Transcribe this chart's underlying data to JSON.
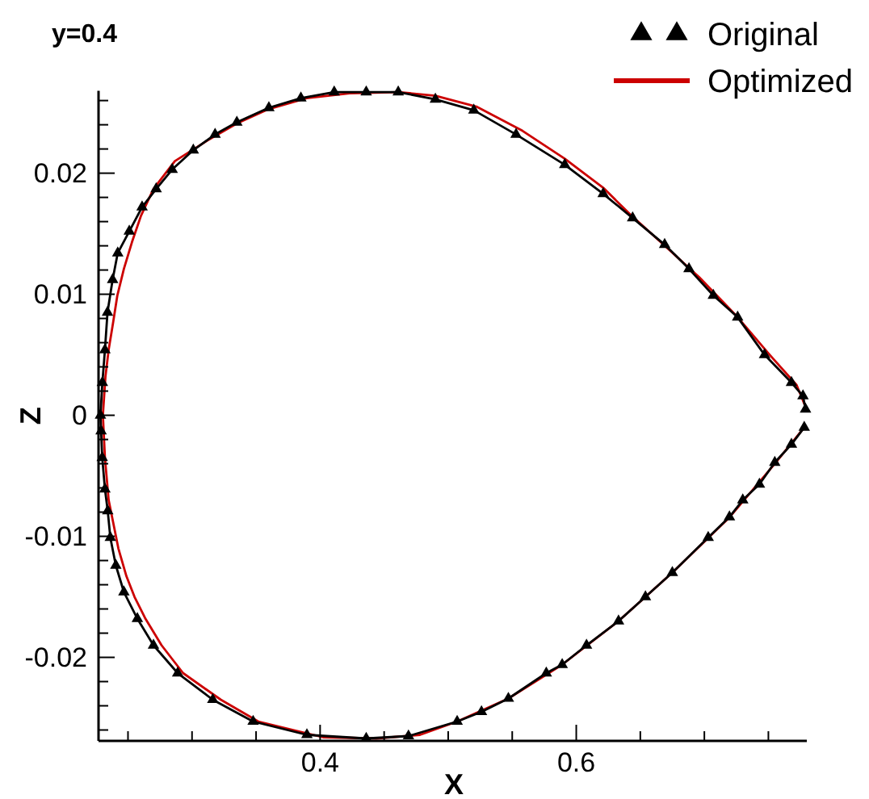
{
  "chart_data": {
    "type": "line",
    "title": "y=0.4",
    "xlabel": "X",
    "ylabel": "Z",
    "legend": "top right",
    "xlim": [
      0.227,
      0.78
    ],
    "ylim": [
      -0.0269,
      0.0268
    ],
    "xticks": [
      {
        "value": 0.25,
        "label": null
      },
      {
        "value": 0.3,
        "label": null
      },
      {
        "value": 0.35,
        "label": null
      },
      0.4,
      {
        "value": 0.45,
        "label": null
      },
      {
        "value": 0.5,
        "label": null
      },
      {
        "value": 0.55,
        "label": null
      },
      0.6,
      {
        "value": 0.65,
        "label": null
      },
      {
        "value": 0.7,
        "label": null
      },
      {
        "value": 0.75,
        "label": null
      }
    ],
    "yticks": [
      {
        "value": -0.026,
        "label": null
      },
      {
        "value": -0.024,
        "label": null
      },
      {
        "value": -0.022,
        "label": null
      },
      -0.02,
      {
        "value": -0.018,
        "label": null
      },
      {
        "value": -0.016,
        "label": null
      },
      {
        "value": -0.014,
        "label": null
      },
      {
        "value": -0.012,
        "label": null
      },
      -0.01,
      {
        "value": -0.008,
        "label": null
      },
      {
        "value": -0.006,
        "label": null
      },
      {
        "value": -0.004,
        "label": null
      },
      {
        "value": -0.002,
        "label": null
      },
      0,
      {
        "value": 0.002,
        "label": null
      },
      {
        "value": 0.004,
        "label": null
      },
      {
        "value": 0.006,
        "label": null
      },
      {
        "value": 0.008,
        "label": null
      },
      0.01,
      {
        "value": 0.012,
        "label": null
      },
      {
        "value": 0.014,
        "label": null
      },
      {
        "value": 0.016,
        "label": null
      },
      {
        "value": 0.018,
        "label": null
      },
      0.02,
      {
        "value": 0.022,
        "label": null
      },
      {
        "value": 0.024,
        "label": null
      },
      {
        "value": 0.026,
        "label": null
      }
    ],
    "series": [
      {
        "name": "Optimized",
        "color": "#cc0000",
        "marker": "none",
        "x": [
          0.779,
          0.772,
          0.751,
          0.726,
          0.696,
          0.667,
          0.642,
          0.621,
          0.591,
          0.558,
          0.522,
          0.49,
          0.461,
          0.423,
          0.3895,
          0.36,
          0.335,
          0.312,
          0.2866,
          0.2699,
          0.2602,
          0.2531,
          0.2468,
          0.2417,
          0.2383,
          0.2349,
          0.2324,
          0.2304,
          0.232,
          0.2349,
          0.2425,
          0.2488,
          0.2551,
          0.2636,
          0.2762,
          0.293,
          0.3225,
          0.3518,
          0.4023,
          0.444,
          0.478,
          0.507,
          0.547,
          0.589,
          0.633,
          0.675,
          0.719,
          0.755,
          0.778
        ],
        "values": [
          0.0007,
          0.0025,
          0.005,
          0.0081,
          0.0114,
          0.0142,
          0.0166,
          0.0188,
          0.0212,
          0.0235,
          0.0255,
          0.0264,
          0.0267,
          0.0266,
          0.0262,
          0.0253,
          0.0241,
          0.0227,
          0.021,
          0.0187,
          0.0165,
          0.0143,
          0.0121,
          0.0099,
          0.0076,
          0.0054,
          0.0032,
          0,
          -0.0035,
          -0.007,
          -0.011,
          -0.0133,
          -0.015,
          -0.0168,
          -0.019,
          -0.0213,
          -0.0235,
          -0.0253,
          -0.0266,
          -0.0267,
          -0.0264,
          -0.0253,
          -0.0234,
          -0.0206,
          -0.017,
          -0.013,
          -0.0085,
          -0.004,
          -0.001
        ]
      },
      {
        "name": "Original",
        "color": "#000000",
        "marker": "triangle",
        "x": [
          0.779,
          0.777,
          0.768,
          0.747,
          0.726,
          0.707,
          0.688,
          0.669,
          0.644,
          0.621,
          0.591,
          0.553,
          0.52,
          0.49,
          0.461,
          0.436,
          0.411,
          0.385,
          0.36,
          0.335,
          0.318,
          0.301,
          0.2845,
          0.272,
          0.261,
          0.251,
          0.242,
          0.238,
          0.234,
          0.232,
          0.23,
          0.2285,
          0.229,
          0.2299,
          0.232,
          0.2342,
          0.2362,
          0.2405,
          0.2468,
          0.2573,
          0.2699,
          0.2888,
          0.3162,
          0.3477,
          0.3897,
          0.436,
          0.469,
          0.507,
          0.526,
          0.547,
          0.5766,
          0.589,
          0.608,
          0.633,
          0.654,
          0.675,
          0.703,
          0.7196,
          0.73,
          0.743,
          0.755,
          0.768,
          0.778
        ],
        "values": [
          0.0005,
          0.0016,
          0.0027,
          0.005,
          0.0081,
          0.0099,
          0.0121,
          0.0141,
          0.0163,
          0.0183,
          0.0207,
          0.0232,
          0.0252,
          0.0261,
          0.0267,
          0.0267,
          0.0267,
          0.0262,
          0.0254,
          0.0242,
          0.0232,
          0.0219,
          0.0203,
          0.0187,
          0.0172,
          0.0152,
          0.0134,
          0.0112,
          0.0085,
          0.0054,
          0.0027,
          0,
          -0.0013,
          -0.0035,
          -0.0061,
          -0.0079,
          -0.0101,
          -0.0124,
          -0.0146,
          -0.0168,
          -0.019,
          -0.0213,
          -0.0235,
          -0.0253,
          -0.0264,
          -0.0267,
          -0.0265,
          -0.0253,
          -0.0245,
          -0.0234,
          -0.0213,
          -0.0206,
          -0.019,
          -0.017,
          -0.015,
          -0.013,
          -0.0101,
          -0.0084,
          -0.007,
          -0.0057,
          -0.0039,
          -0.0024,
          -0.001
        ]
      }
    ]
  }
}
